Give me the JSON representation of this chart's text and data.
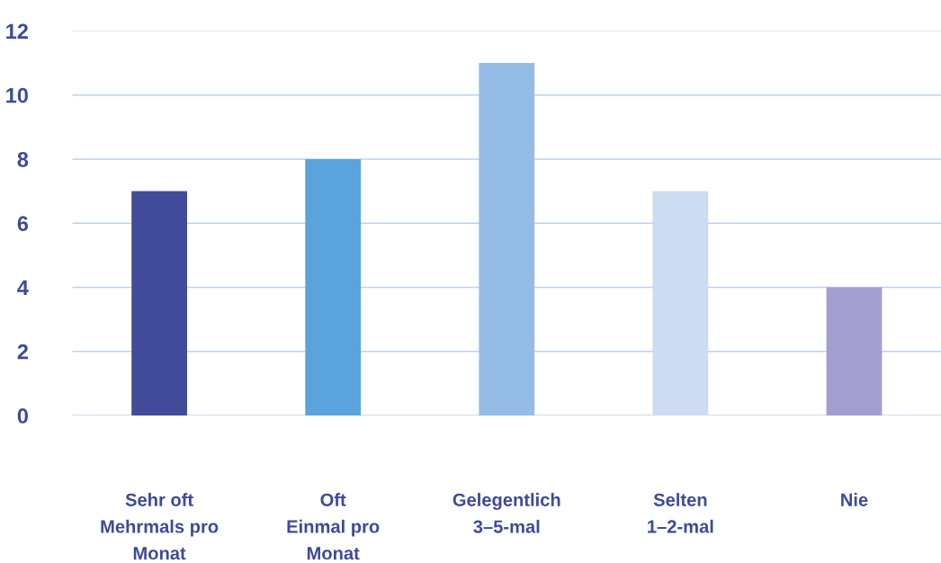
{
  "chart_data": {
    "type": "bar",
    "categories": [
      "Sehr oft\nMehrmals pro\nMonat",
      "Oft\nEinmal pro\nMonat",
      "Gelegentlich\n3–5-mal",
      "Selten\n1–2-mal",
      "Nie"
    ],
    "values": [
      7,
      8,
      11,
      7,
      4
    ],
    "colors": [
      "#424c9a",
      "#5ba3dc",
      "#95bce6",
      "#cddcf3",
      "#a29fd0"
    ],
    "ylim": [
      0,
      12
    ],
    "yticks": [
      0,
      2,
      4,
      6,
      8,
      10,
      12
    ],
    "grid": "y"
  }
}
